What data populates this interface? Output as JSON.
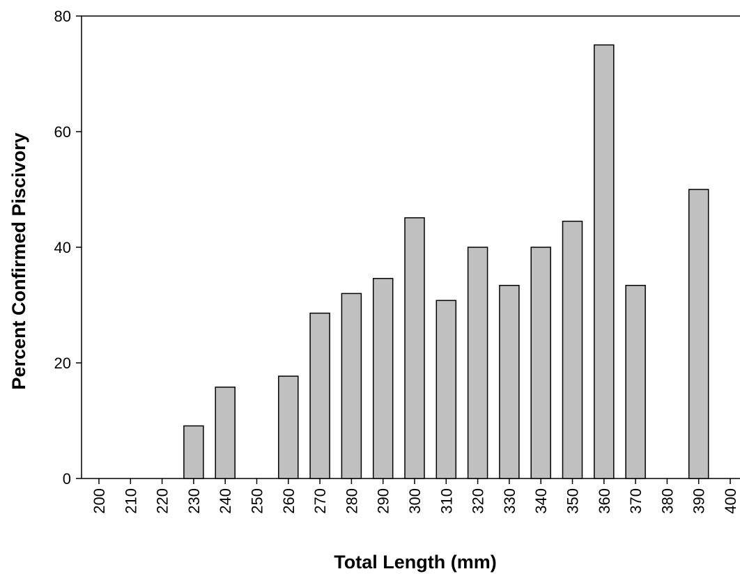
{
  "chart_data": {
    "type": "bar",
    "title": "",
    "xlabel": "Total Length (mm)",
    "ylabel": "Percent Confirmed Piscivory",
    "xlim": [
      200,
      400
    ],
    "ylim": [
      0,
      80
    ],
    "x_ticks": [
      200,
      210,
      220,
      230,
      240,
      250,
      260,
      270,
      280,
      290,
      300,
      310,
      320,
      330,
      340,
      350,
      360,
      370,
      380,
      390,
      400
    ],
    "y_ticks": [
      0,
      20,
      40,
      60,
      80
    ],
    "grid": false,
    "legend": "none",
    "bar_color": "#c0c0c0",
    "bars": [
      {
        "x": 230,
        "value": 9.1
      },
      {
        "x": 240,
        "value": 15.8
      },
      {
        "x": 260,
        "value": 17.7
      },
      {
        "x": 270,
        "value": 28.6
      },
      {
        "x": 280,
        "value": 32.0
      },
      {
        "x": 290,
        "value": 34.6
      },
      {
        "x": 300,
        "value": 45.1
      },
      {
        "x": 310,
        "value": 30.8
      },
      {
        "x": 320,
        "value": 40.0
      },
      {
        "x": 330,
        "value": 33.4
      },
      {
        "x": 340,
        "value": 40.0
      },
      {
        "x": 350,
        "value": 44.5
      },
      {
        "x": 360,
        "value": 75.0
      },
      {
        "x": 370,
        "value": 33.4
      },
      {
        "x": 390,
        "value": 50.0
      }
    ]
  }
}
